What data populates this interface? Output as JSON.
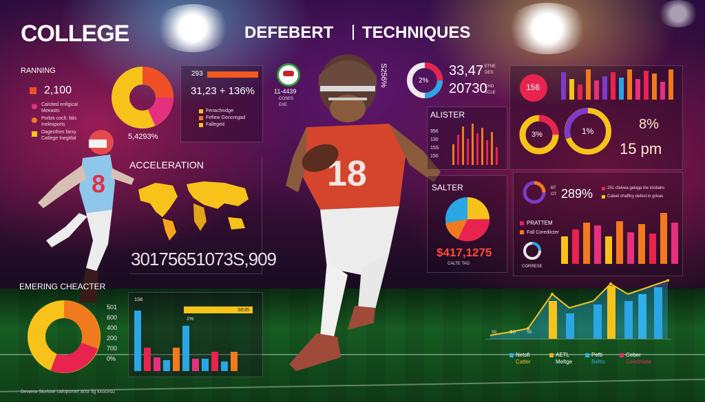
{
  "header": {
    "title_left": "COLLEGE",
    "title_mid": "DEFEBERT",
    "title_right": "TECHNIQUES"
  },
  "running": {
    "label": "RANNING",
    "value": "2,100",
    "legend": [
      "Calcited enfigical\nMeeasts",
      "Porbis coclt. fals\nIneleaports",
      "Dagecthes farsy\nCatlege Inegitfal"
    ],
    "donut_value": "5,4293%"
  },
  "top_stats": {
    "small": "293",
    "big": "31,23 + 136%",
    "legend": [
      "Fenachivdge",
      "Fefiew Gencregad",
      "Falleged"
    ]
  },
  "acceleration": {
    "label": "ACCELERATION",
    "number": "30175651073S,909"
  },
  "emerging": {
    "label": "EMERING CHEACTER",
    "axis": [
      "501",
      "600",
      "400",
      "200",
      "700",
      "0%"
    ],
    "top_small": "1S6",
    "mid_small": "1%",
    "mid_right": "SE35"
  },
  "center_badge": {
    "number": "11-4439",
    "caption": "COSES\nEXE"
  },
  "top_right_stats": {
    "vertical": "S256%",
    "donut_value": "2%",
    "line1": "33,47",
    "line1_unit": "ETHE\nDES",
    "line2": "20730",
    "line2_unit": "CHO\nSCLE"
  },
  "alister": {
    "label": "ALISTER",
    "axis": [
      "956",
      "130",
      "15S",
      "150"
    ]
  },
  "salter": {
    "label": "SALTER",
    "value": "$417,1275",
    "caption": "CALTE   TAG"
  },
  "right_top": {
    "circle_value": "156",
    "donut_a": "3%",
    "donut_b": "1%",
    "big_pct": "8%",
    "big_time": "15 pm"
  },
  "right_mid": {
    "pct": "289%",
    "legend": [
      "251 cfalvea gelaga ihe iclotiahs",
      "Cateel chafficy defect in grivas"
    ],
    "small": "BT\nOT"
  },
  "right_bars": {
    "legend": [
      "PRATTEM",
      "Fall Corediicter"
    ],
    "gauge_caption": "CORRESE"
  },
  "right_bottom": {
    "axis": [
      "S5",
      "CO",
      "S5"
    ],
    "legend": [
      {
        "a": "Netsfi",
        "b": "Catter",
        "color": "#2fb0e8"
      },
      {
        "a": "AETL",
        "b": "Meltge",
        "color": "#f3b41c"
      },
      {
        "a": "Pefti",
        "b": "Beltis",
        "color": "#2fb0e8"
      },
      {
        "a": "Ceber",
        "b": "Cerethlate",
        "color": "#e0306a"
      }
    ]
  },
  "footer": {
    "caption": "Dewera Sicrlsse cafopsmet acor ilg kxocesu"
  },
  "colors": {
    "yellow": "#f7c31b",
    "orange": "#f07a1d",
    "red": "#e8234f",
    "pink": "#e5307e",
    "blue": "#2aa6e4",
    "purple": "#7d3bc9"
  },
  "icons": [
    "football-player-icon",
    "running-player-icon",
    "world-map-icon",
    "clock-icon",
    "gauge-icon"
  ]
}
